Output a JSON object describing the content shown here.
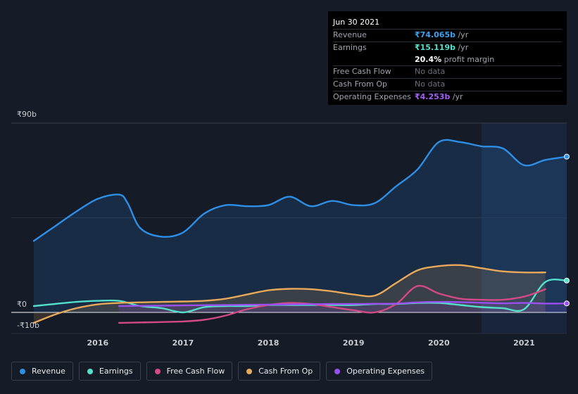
{
  "tooltip": {
    "date": "Jun 30 2021",
    "rows": [
      {
        "label": "Revenue",
        "value": "₹74.065b",
        "unit": " /yr",
        "color": "#3fa0ee"
      },
      {
        "label": "Earnings",
        "value": "₹15.119b",
        "unit": " /yr",
        "color": "#55e0cc"
      },
      {
        "label": "",
        "value": "20.4%",
        "unit": " profit margin",
        "color": "#ffffff"
      },
      {
        "label": "Free Cash Flow",
        "nodata": "No data"
      },
      {
        "label": "Cash From Op",
        "nodata": "No data"
      },
      {
        "label": "Operating Expenses",
        "value": "₹4.253b",
        "unit": " /yr",
        "color": "#a35ff7"
      }
    ]
  },
  "legend": [
    {
      "label": "Revenue",
      "color": "#2d8fe6"
    },
    {
      "label": "Earnings",
      "color": "#55e0cc"
    },
    {
      "label": "Free Cash Flow",
      "color": "#d34a87"
    },
    {
      "label": "Cash From Op",
      "color": "#e9a95a"
    },
    {
      "label": "Operating Expenses",
      "color": "#9b4ff0"
    }
  ],
  "chart_data": {
    "type": "line",
    "y_tick_labels": [
      "₹90b",
      "₹0",
      "-₹10b"
    ],
    "ylim": [
      -10,
      90
    ],
    "x_tick_labels": [
      "2016",
      "2017",
      "2018",
      "2019",
      "2020",
      "2021"
    ],
    "xlim": [
      2015.25,
      2021.5
    ],
    "highlight_from": 2020.5,
    "series": [
      {
        "name": "Revenue",
        "color": "#2d8fe6",
        "fill": true,
        "points": [
          [
            2015.25,
            34
          ],
          [
            2015.5,
            41
          ],
          [
            2015.75,
            48
          ],
          [
            2016.0,
            54
          ],
          [
            2016.25,
            56
          ],
          [
            2016.35,
            52
          ],
          [
            2016.5,
            40
          ],
          [
            2016.75,
            36
          ],
          [
            2017.0,
            38
          ],
          [
            2017.25,
            47
          ],
          [
            2017.5,
            51
          ],
          [
            2017.75,
            50.5
          ],
          [
            2018.0,
            51
          ],
          [
            2018.25,
            55
          ],
          [
            2018.5,
            50.5
          ],
          [
            2018.75,
            53
          ],
          [
            2019.0,
            51
          ],
          [
            2019.25,
            52
          ],
          [
            2019.5,
            60
          ],
          [
            2019.75,
            68
          ],
          [
            2020.0,
            81
          ],
          [
            2020.25,
            81
          ],
          [
            2020.5,
            79
          ],
          [
            2020.75,
            78
          ],
          [
            2021.0,
            70
          ],
          [
            2021.25,
            72.5
          ],
          [
            2021.5,
            74.065
          ]
        ]
      },
      {
        "name": "Earnings",
        "color": "#55e0cc",
        "fill": false,
        "points": [
          [
            2015.25,
            3
          ],
          [
            2015.5,
            4
          ],
          [
            2015.75,
            5
          ],
          [
            2016.0,
            5.5
          ],
          [
            2016.25,
            5.5
          ],
          [
            2016.5,
            3
          ],
          [
            2016.75,
            2
          ],
          [
            2017.0,
            0
          ],
          [
            2017.25,
            2.5
          ],
          [
            2017.5,
            3
          ],
          [
            2017.75,
            3
          ],
          [
            2018.0,
            3.5
          ],
          [
            2018.25,
            3.5
          ],
          [
            2018.5,
            3.5
          ],
          [
            2018.75,
            3.5
          ],
          [
            2019.0,
            3.5
          ],
          [
            2019.25,
            4
          ],
          [
            2019.5,
            4
          ],
          [
            2019.75,
            4.5
          ],
          [
            2020.0,
            4.5
          ],
          [
            2020.25,
            3.5
          ],
          [
            2020.5,
            2.5
          ],
          [
            2020.75,
            2
          ],
          [
            2021.0,
            1.5
          ],
          [
            2021.25,
            14.5
          ],
          [
            2021.5,
            15.119
          ]
        ]
      },
      {
        "name": "Free Cash Flow",
        "color": "#d34a87",
        "fill": false,
        "points": [
          [
            2016.25,
            -5
          ],
          [
            2016.5,
            -4.8
          ],
          [
            2016.75,
            -4.6
          ],
          [
            2017.0,
            -4.3
          ],
          [
            2017.25,
            -3.5
          ],
          [
            2017.5,
            -1.5
          ],
          [
            2017.75,
            1.5
          ],
          [
            2018.0,
            3.5
          ],
          [
            2018.25,
            4.5
          ],
          [
            2018.5,
            4
          ],
          [
            2018.75,
            2.5
          ],
          [
            2019.0,
            1
          ],
          [
            2019.25,
            0
          ],
          [
            2019.5,
            4
          ],
          [
            2019.75,
            12.5
          ],
          [
            2020.0,
            9
          ],
          [
            2020.25,
            6.5
          ],
          [
            2020.5,
            6
          ],
          [
            2020.75,
            6
          ],
          [
            2021.0,
            7.5
          ],
          [
            2021.25,
            11
          ]
        ]
      },
      {
        "name": "Cash From Op",
        "color": "#e9a95a",
        "fill": true,
        "points": [
          [
            2015.25,
            -5
          ],
          [
            2015.5,
            -1
          ],
          [
            2015.75,
            2
          ],
          [
            2016.0,
            3.8
          ],
          [
            2016.25,
            4.5
          ],
          [
            2016.5,
            4.8
          ],
          [
            2016.75,
            5
          ],
          [
            2017.0,
            5.2
          ],
          [
            2017.25,
            5.5
          ],
          [
            2017.5,
            6.5
          ],
          [
            2017.75,
            8.5
          ],
          [
            2018.0,
            10.5
          ],
          [
            2018.25,
            11.2
          ],
          [
            2018.5,
            11
          ],
          [
            2018.75,
            10
          ],
          [
            2019.0,
            8.5
          ],
          [
            2019.25,
            8
          ],
          [
            2019.5,
            14
          ],
          [
            2019.75,
            20
          ],
          [
            2020.0,
            22
          ],
          [
            2020.25,
            22.5
          ],
          [
            2020.5,
            21
          ],
          [
            2020.75,
            19.5
          ],
          [
            2021.0,
            19
          ],
          [
            2021.25,
            19
          ]
        ]
      },
      {
        "name": "Operating Expenses",
        "color": "#9b4ff0",
        "fill": true,
        "points": [
          [
            2016.25,
            3
          ],
          [
            2016.5,
            3.1
          ],
          [
            2016.75,
            3.2
          ],
          [
            2017.0,
            3.3
          ],
          [
            2017.25,
            3.4
          ],
          [
            2017.5,
            3.5
          ],
          [
            2017.75,
            3.6
          ],
          [
            2018.0,
            3.7
          ],
          [
            2018.25,
            3.8
          ],
          [
            2018.5,
            3.9
          ],
          [
            2018.75,
            4
          ],
          [
            2019.0,
            4
          ],
          [
            2019.25,
            4.1
          ],
          [
            2019.5,
            4.2
          ],
          [
            2019.75,
            4.8
          ],
          [
            2020.0,
            5
          ],
          [
            2020.25,
            4.9
          ],
          [
            2020.5,
            4.6
          ],
          [
            2020.75,
            4.3
          ],
          [
            2021.0,
            4.5
          ],
          [
            2021.25,
            4.2
          ],
          [
            2021.5,
            4.253
          ]
        ]
      }
    ]
  }
}
